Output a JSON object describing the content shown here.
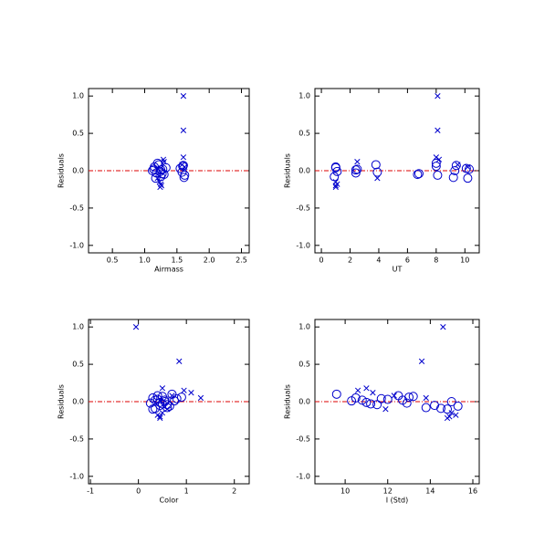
{
  "chart_data": [
    {
      "type": "scatter",
      "xlabel": "Airmass",
      "ylabel": "Residuals",
      "xlim": [
        0.13,
        2.62
      ],
      "ylim": [
        -1.1,
        1.1
      ],
      "xticks": [
        0.5,
        {
          "value": 1,
          "label": "1.0"
        },
        1.5,
        {
          "value": 2,
          "label": "2.0"
        },
        2.5
      ],
      "yticks": [
        {
          "value": 1,
          "label": "1.0"
        },
        0.5,
        {
          "value": 0,
          "label": "0.0"
        },
        -0.5,
        {
          "value": -1,
          "label": "-1.0"
        }
      ],
      "reference_line": 0,
      "reference_color": "#dd0000",
      "series": [
        {
          "marker": "circle",
          "color": "#0000cc",
          "x": [
            1.15,
            1.18,
            1.22,
            1.25,
            1.28,
            1.3,
            1.2,
            1.12,
            1.17,
            1.33,
            1.58,
            1.6,
            1.62,
            1.55,
            1.25,
            1.27,
            1.59,
            1.61,
            1.14,
            1.24
          ],
          "values": [
            0.05,
            -0.03,
            0.08,
            -0.08,
            0.02,
            -0.05,
            0.1,
            0.0,
            -0.1,
            0.04,
            -0.02,
            0.07,
            -0.06,
            0.03,
            0.01,
            -0.04,
            0.06,
            -0.09,
            0.02,
            -0.01
          ]
        },
        {
          "marker": "cross",
          "color": "#0000cc",
          "x": [
            1.6,
            1.6,
            1.6,
            1.24,
            1.25,
            1.3,
            1.23,
            1.58,
            1.29,
            1.26,
            1.2,
            1.62
          ],
          "values": [
            1.0,
            0.54,
            0.18,
            -0.22,
            -0.18,
            0.12,
            -0.15,
            0.08,
            0.15,
            -0.2,
            -0.1,
            0.05
          ]
        }
      ]
    },
    {
      "type": "scatter",
      "xlabel": "UT",
      "ylabel": "Residuals",
      "xlim": [
        -0.45,
        11.0
      ],
      "ylim": [
        -1.1,
        1.1
      ],
      "xticks": [
        0,
        2,
        4,
        6,
        8,
        10
      ],
      "yticks": [
        {
          "value": 1,
          "label": "1.0"
        },
        0.5,
        {
          "value": 0,
          "label": "0.0"
        },
        -0.5,
        {
          "value": -1,
          "label": "-1.0"
        }
      ],
      "reference_line": 0,
      "reference_color": "#dd0000",
      "series": [
        {
          "marker": "circle",
          "color": "#0000cc",
          "x": [
            1,
            2.4,
            3.8,
            0.9,
            2.5,
            6.7,
            8.0,
            9.3,
            10.2,
            1.0,
            3.9,
            9.4,
            8.1,
            10.1,
            2.4,
            6.8,
            8.0,
            9.2,
            10.3,
            1.1
          ],
          "values": [
            0.05,
            -0.03,
            0.08,
            -0.08,
            0.02,
            -0.05,
            0.1,
            0.0,
            -0.1,
            0.04,
            -0.02,
            0.07,
            -0.06,
            0.03,
            0.01,
            -0.04,
            0.06,
            -0.09,
            0.02,
            -0.01
          ]
        },
        {
          "marker": "cross",
          "color": "#0000cc",
          "x": [
            8.1,
            8.1,
            8.0,
            1.0,
            1.1,
            2.5,
            1.0,
            9.5,
            8.2,
            1.0,
            3.9,
            10.2
          ],
          "values": [
            1.0,
            0.54,
            0.18,
            -0.22,
            -0.18,
            0.12,
            -0.15,
            0.08,
            0.15,
            -0.2,
            -0.1,
            0.05
          ]
        }
      ]
    },
    {
      "type": "scatter",
      "xlabel": "Color",
      "ylabel": "Residuals",
      "xlim": [
        -1.04,
        2.31
      ],
      "ylim": [
        -1.1,
        1.1
      ],
      "xticks": [
        -1,
        0,
        1,
        2
      ],
      "yticks": [
        {
          "value": 1,
          "label": "1.0"
        },
        0.5,
        {
          "value": 0,
          "label": "0.0"
        },
        -0.5,
        {
          "value": -1,
          "label": "-1.0"
        }
      ],
      "reference_line": 0,
      "reference_color": "#dd0000",
      "series": [
        {
          "marker": "circle",
          "color": "#0000cc",
          "x": [
            0.3,
            0.5,
            0.4,
            0.6,
            0.35,
            0.45,
            0.7,
            0.55,
            0.3,
            0.8,
            0.25,
            0.5,
            0.65,
            0.4,
            0.75,
            0.6,
            0.9,
            0.35,
            0.55,
            0.45
          ],
          "values": [
            0.05,
            -0.03,
            0.08,
            -0.08,
            0.02,
            -0.05,
            0.1,
            0.0,
            -0.1,
            0.04,
            -0.02,
            0.07,
            -0.06,
            0.03,
            0.01,
            -0.04,
            0.06,
            -0.09,
            0.02,
            -0.01
          ]
        },
        {
          "marker": "cross",
          "color": "#0000cc",
          "x": [
            -0.05,
            0.85,
            0.5,
            0.45,
            0.4,
            1.1,
            0.5,
            0.7,
            0.95,
            0.45,
            0.6,
            1.3
          ],
          "values": [
            1.0,
            0.54,
            0.18,
            -0.22,
            -0.18,
            0.12,
            -0.15,
            0.08,
            0.15,
            -0.2,
            -0.1,
            0.05
          ]
        }
      ]
    },
    {
      "type": "scatter",
      "xlabel": "I (Std)",
      "ylabel": "Residuals",
      "xlim": [
        8.58,
        16.3
      ],
      "ylim": [
        -1.1,
        1.1
      ],
      "xticks": [
        10,
        12,
        14,
        16
      ],
      "yticks": [
        {
          "value": 1,
          "label": "1.0"
        },
        0.5,
        {
          "value": 0,
          "label": "0.0"
        },
        -0.5,
        {
          "value": -1,
          "label": "-1.0"
        }
      ],
      "reference_line": 0,
      "reference_color": "#dd0000",
      "series": [
        {
          "marker": "circle",
          "color": "#0000cc",
          "x": [
            10.5,
            11.2,
            12.5,
            13.8,
            10.8,
            14.2,
            9.6,
            15.0,
            14.8,
            11.7,
            12.9,
            13.2,
            15.3,
            12.0,
            10.3,
            11.5,
            13.0,
            14.5,
            12.7,
            11.0
          ],
          "values": [
            0.05,
            -0.03,
            0.08,
            -0.08,
            0.02,
            -0.05,
            0.1,
            0.0,
            -0.1,
            0.04,
            -0.02,
            0.07,
            -0.06,
            0.03,
            0.01,
            -0.04,
            0.06,
            -0.09,
            0.02,
            -0.01
          ]
        },
        {
          "marker": "cross",
          "color": "#0000cc",
          "x": [
            14.6,
            13.6,
            11.0,
            14.8,
            15.2,
            11.3,
            15.0,
            12.3,
            10.6,
            14.9,
            11.9,
            13.8
          ],
          "values": [
            1.0,
            0.54,
            0.18,
            -0.22,
            -0.18,
            0.12,
            -0.15,
            0.08,
            0.15,
            -0.2,
            -0.1,
            0.05
          ]
        }
      ]
    }
  ]
}
